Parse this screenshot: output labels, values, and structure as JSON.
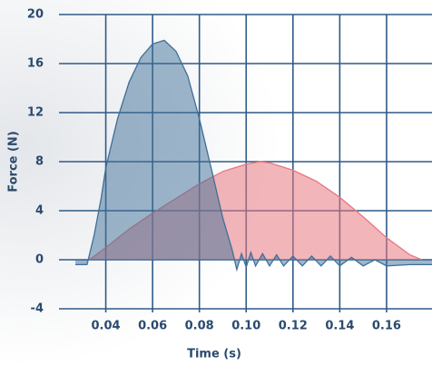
{
  "chart_data": {
    "type": "area",
    "xlabel": "Time (s)",
    "ylabel": "Force (N)",
    "xlim": [
      0.02,
      0.18
    ],
    "ylim": [
      -4,
      20
    ],
    "xticks": [
      0.04,
      0.06,
      0.08,
      {
        "value": 0.1,
        "label": "0.10"
      },
      0.12,
      0.14,
      0.16
    ],
    "yticks": [
      -4,
      0,
      4,
      8,
      12,
      16,
      20
    ],
    "grid": true,
    "series": [
      {
        "color": "#e7797f",
        "x": [
          0.033,
          0.04,
          0.05,
          0.06,
          0.07,
          0.08,
          0.09,
          0.1,
          0.106,
          0.11,
          0.12,
          0.13,
          0.14,
          0.15,
          0.16,
          0.17,
          0.175
        ],
        "values": [
          0,
          1,
          2.5,
          3.8,
          5,
          6.2,
          7.2,
          7.8,
          8,
          7.9,
          7.3,
          6.4,
          5.1,
          3.5,
          1.8,
          0.4,
          0
        ]
      },
      {
        "color": "#3f6f98",
        "x": [
          0.027,
          0.032,
          0.035,
          0.038,
          0.04,
          0.045,
          0.05,
          0.055,
          0.06,
          0.065,
          0.07,
          0.075,
          0.08,
          0.085,
          0.09,
          0.094,
          0.096,
          0.098,
          0.1,
          0.102,
          0.104,
          0.107,
          0.11,
          0.113,
          0.116,
          0.12,
          0.124,
          0.128,
          0.132,
          0.136,
          0.14,
          0.145,
          0.15,
          0.155,
          0.16,
          0.17,
          0.18
        ],
        "values": [
          -0.4,
          -0.4,
          2,
          5,
          7.5,
          11.5,
          14.5,
          16.5,
          17.6,
          17.9,
          17,
          15,
          11.5,
          7.5,
          3.4,
          0.8,
          -0.8,
          0.5,
          -0.6,
          0.6,
          -0.5,
          0.5,
          -0.5,
          0.4,
          -0.5,
          0.3,
          -0.5,
          0.3,
          -0.5,
          0.3,
          -0.5,
          0.2,
          -0.5,
          0,
          -0.5,
          -0.4,
          -0.4
        ]
      }
    ]
  }
}
